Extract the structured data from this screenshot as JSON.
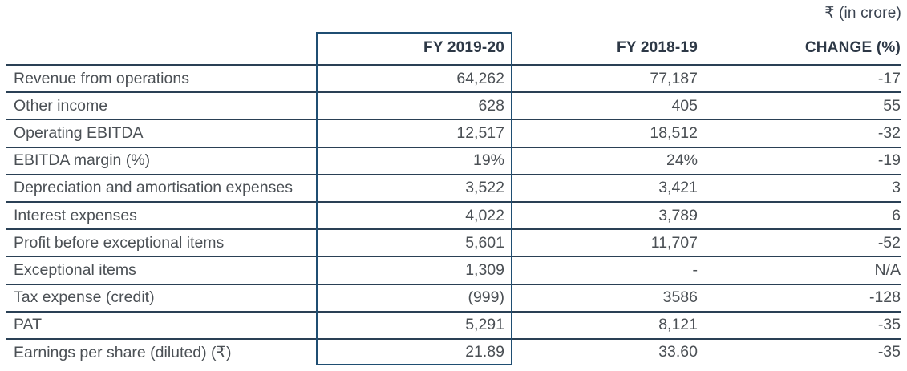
{
  "unit_note": "₹ (in crore)",
  "table": {
    "columns": [
      "",
      "FY 2019-20",
      "FY 2018-19",
      "CHANGE (%)"
    ],
    "rows": [
      {
        "label": "Revenue from operations",
        "fy2020": "64,262",
        "fy2019": "77,187",
        "change": "-17"
      },
      {
        "label": "Other income",
        "fy2020": "628",
        "fy2019": "405",
        "change": "55"
      },
      {
        "label": "Operating EBITDA",
        "fy2020": "12,517",
        "fy2019": "18,512",
        "change": "-32"
      },
      {
        "label": "EBITDA margin (%)",
        "fy2020": "19%",
        "fy2019": "24%",
        "change": "-19"
      },
      {
        "label": "Depreciation and amortisation expenses",
        "fy2020": "3,522",
        "fy2019": "3,421",
        "change": "3"
      },
      {
        "label": "Interest expenses",
        "fy2020": "4,022",
        "fy2019": "3,789",
        "change": "6"
      },
      {
        "label": "Profit before exceptional items",
        "fy2020": "5,601",
        "fy2019": "11,707",
        "change": "-52"
      },
      {
        "label": "Exceptional items",
        "fy2020": "1,309",
        "fy2019": "-",
        "change": "N/A"
      },
      {
        "label": "Tax expense (credit)",
        "fy2020": "(999)",
        "fy2019": "3586",
        "change": "-128"
      },
      {
        "label": "PAT",
        "fy2020": "5,291",
        "fy2019": "8,121",
        "change": "-35"
      },
      {
        "label": "Earnings per share (diluted) (₹)",
        "fy2020": "21.89",
        "fy2019": "33.60",
        "change": "-35"
      }
    ]
  },
  "colors": {
    "row_line": "#2a4055",
    "highlight_box_border": "#1f4e72",
    "body_text": "#4b5055",
    "header_text": "#2d3846"
  }
}
